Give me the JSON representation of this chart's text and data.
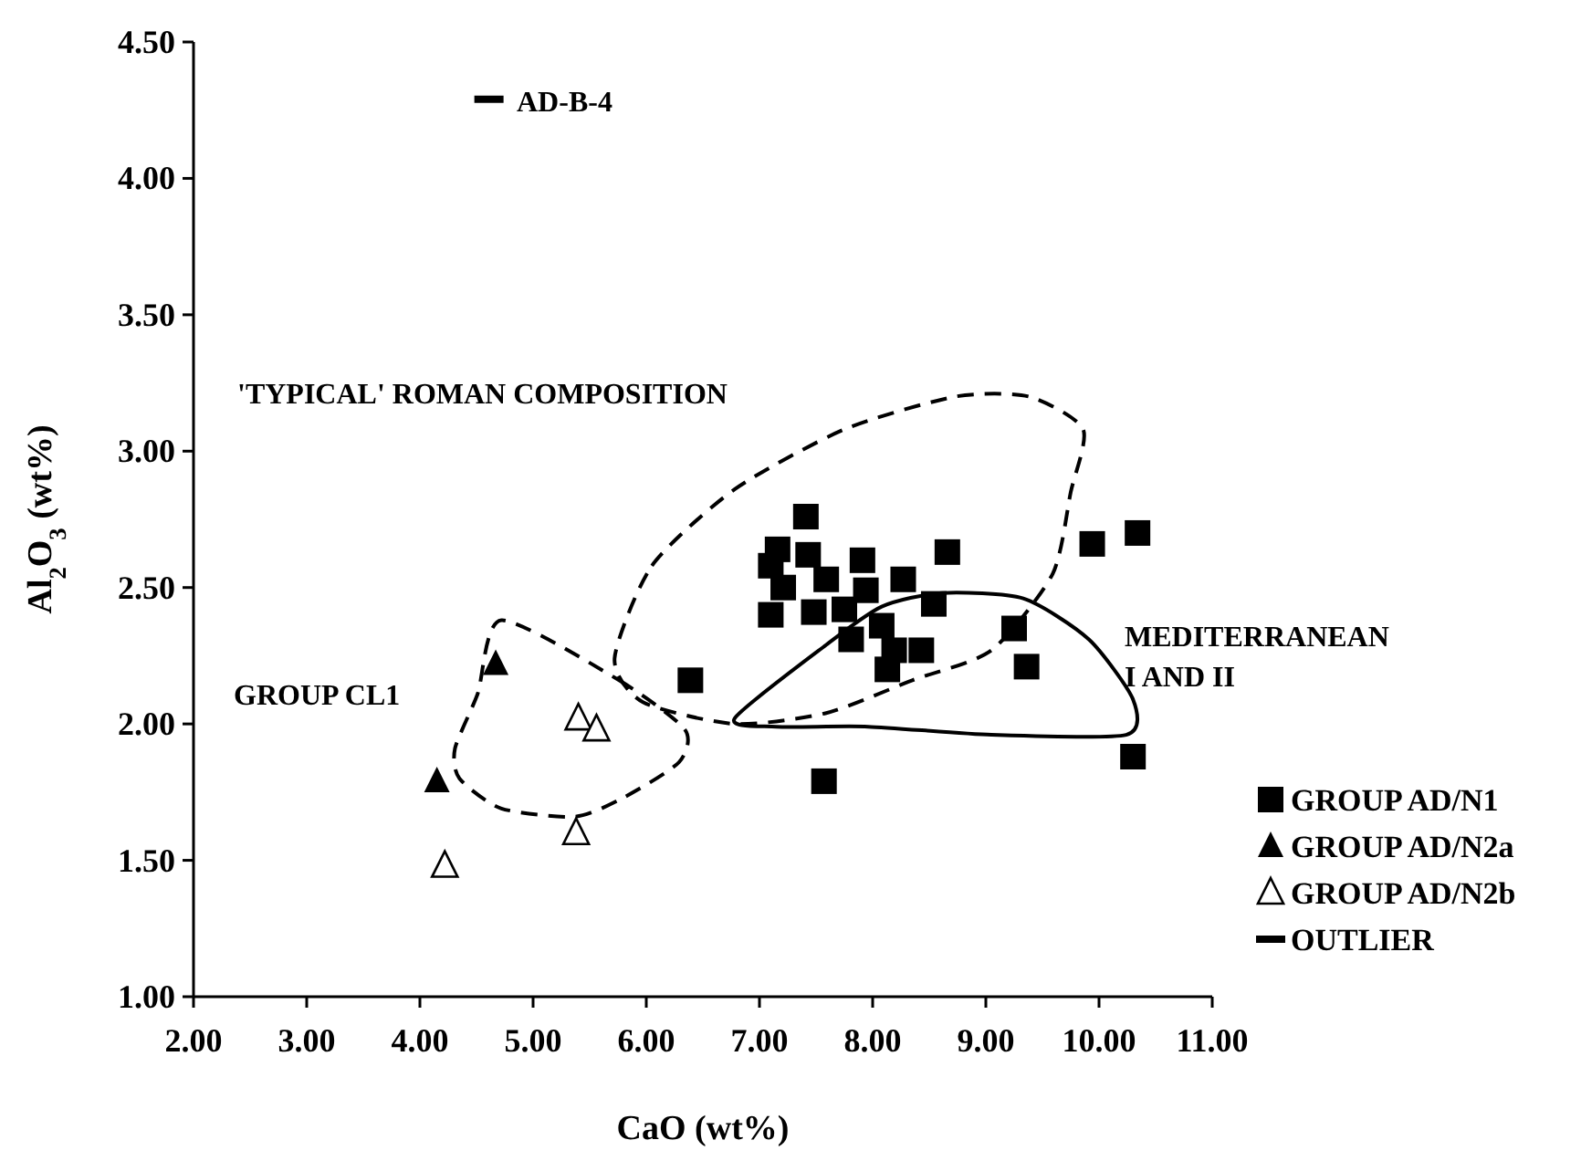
{
  "chart_data": {
    "type": "scatter",
    "xlabel": "CaO (wt%)",
    "ylabel": "Al$_{2}$O$_{3}$ (wt%)",
    "xlim": [
      2,
      11
    ],
    "ylim": [
      1,
      4.5
    ],
    "xticks": [
      {
        "value": 2,
        "label": "2.00"
      },
      {
        "value": 3,
        "label": "3.00"
      },
      {
        "value": 4,
        "label": "4.00"
      },
      {
        "value": 5,
        "label": "5.00"
      },
      {
        "value": 6,
        "label": "6.00"
      },
      {
        "value": 7,
        "label": "7.00"
      },
      {
        "value": 8,
        "label": "8.00"
      },
      {
        "value": 9,
        "label": "9.00"
      },
      {
        "value": 10,
        "label": "10.00"
      },
      {
        "value": 11,
        "label": "11.00"
      }
    ],
    "yticks": [
      {
        "value": 1,
        "label": "1.00"
      },
      {
        "value": 1.5,
        "label": "1.50"
      },
      {
        "value": 2,
        "label": "2.00"
      },
      {
        "value": 2.5,
        "label": "2.50"
      },
      {
        "value": 3,
        "label": "3.00"
      },
      {
        "value": 3.5,
        "label": "3.50"
      },
      {
        "value": 4,
        "label": "4.00"
      },
      {
        "value": 4.5,
        "label": "4.50"
      }
    ],
    "grid": false,
    "legend": "bottom right",
    "series": [
      {
        "name": "GROUP AD/N1",
        "color": "#000000",
        "marker": "square",
        "x": [
          7.41,
          8.66,
          9.94,
          10.34,
          6.39,
          9.25,
          9.36,
          10.3,
          7.57,
          8.43,
          8.13,
          8.54,
          8.27,
          7.1,
          7.1,
          7.21,
          7.43,
          7.48,
          7.59,
          7.91,
          7.94,
          7.81,
          8.08,
          8.19,
          7.75,
          7.16
        ],
        "values": [
          2.76,
          2.63,
          2.66,
          2.7,
          2.16,
          2.35,
          2.21,
          1.88,
          1.79,
          2.27,
          2.2,
          2.44,
          2.53,
          2.58,
          2.4,
          2.5,
          2.62,
          2.41,
          2.53,
          2.6,
          2.49,
          2.31,
          2.36,
          2.27,
          2.42,
          2.64
        ]
      },
      {
        "name": "GROUP AD/N2a",
        "color": "#000000",
        "marker": "triangle",
        "x": [
          4.67,
          4.15
        ],
        "values": [
          2.22,
          1.79
        ]
      },
      {
        "name": "GROUP AD/N2b",
        "color": "#000000",
        "marker": "triangle-open",
        "x": [
          4.22,
          5.4,
          5.56,
          5.38
        ],
        "values": [
          1.48,
          2.02,
          1.98,
          1.6
        ]
      },
      {
        "name": "OUTLIER",
        "color": "#000000",
        "x": [
          4.61
        ],
        "values": [
          4.29
        ]
      }
    ],
    "annotations": [
      "'TYPICAL' ROMAN COMPOSITION",
      "MEDITERRANEAN\nI AND II",
      "GROUP CL1",
      "AD-B-4"
    ]
  }
}
